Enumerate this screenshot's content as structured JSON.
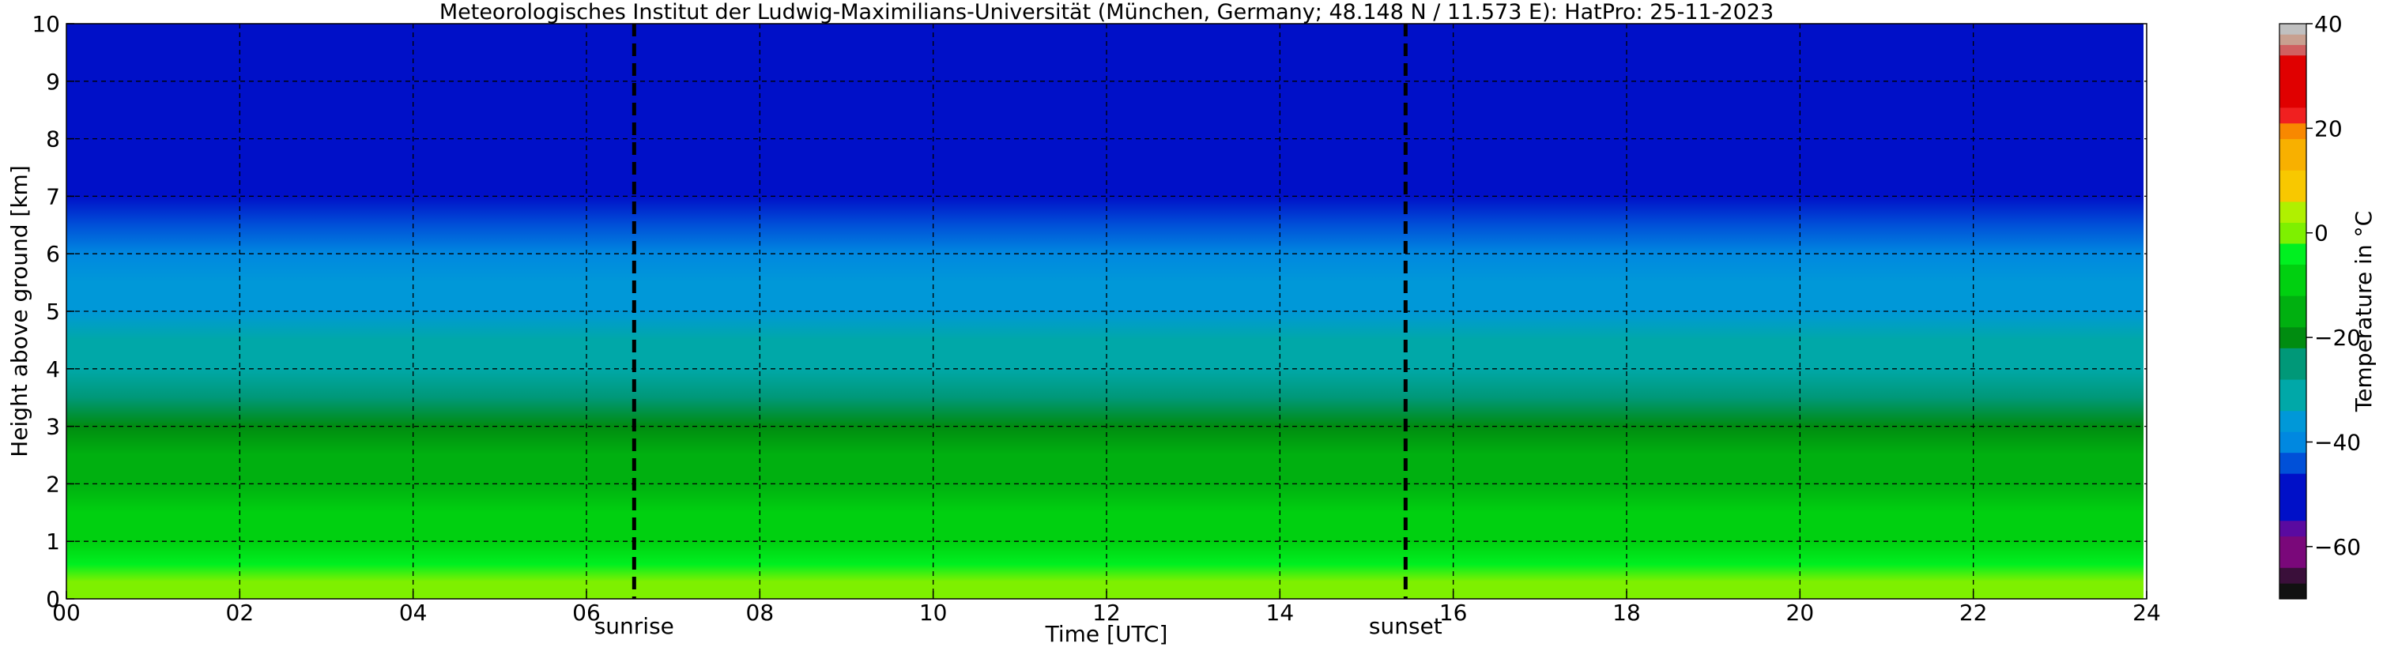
{
  "chart_data": {
    "type": "heatmap",
    "title": "Meteorologisches Institut der Ludwig-Maximilians-Universität (München, Germany; 48.148 N / 11.573 E):    HatPro: 25-11-2023",
    "xlabel": "Time [UTC]",
    "ylabel": "Height above ground [km]",
    "xlim": [
      0,
      24
    ],
    "ylim": [
      0,
      10
    ],
    "x_ticks": [
      0,
      2,
      4,
      6,
      8,
      10,
      12,
      14,
      16,
      18,
      20,
      22,
      24
    ],
    "x_tick_labels": [
      "00",
      "02",
      "04",
      "06",
      "08",
      "10",
      "12",
      "14",
      "16",
      "18",
      "20",
      "22",
      "24"
    ],
    "y_ticks": [
      0,
      1,
      2,
      3,
      4,
      5,
      6,
      7,
      8,
      9,
      10
    ],
    "y_tick_labels": [
      "0",
      "1",
      "2",
      "3",
      "4",
      "5",
      "6",
      "7",
      "8",
      "9",
      "10"
    ],
    "grid": true,
    "events": [
      {
        "label": "sunrise",
        "time": 6.55
      },
      {
        "label": "sunset",
        "time": 15.45
      }
    ],
    "colorbar": {
      "label": "Temperature in °C",
      "min": -70,
      "max": 40,
      "ticks": [
        40,
        20,
        0,
        -20,
        -40,
        -60
      ],
      "tick_labels": [
        "40",
        "20",
        "0",
        "−20",
        "−40",
        "−60"
      ],
      "palette": [
        {
          "from": -70,
          "to": -67,
          "color": "#111111"
        },
        {
          "from": -67,
          "to": -64,
          "color": "#3a0f3a"
        },
        {
          "from": -64,
          "to": -58,
          "color": "#7a087a"
        },
        {
          "from": -58,
          "to": -55,
          "color": "#5a0aa0"
        },
        {
          "from": -55,
          "to": -46,
          "color": "#0010c8"
        },
        {
          "from": -46,
          "to": -42,
          "color": "#0050d8"
        },
        {
          "from": -42,
          "to": -38,
          "color": "#0088e0"
        },
        {
          "from": -38,
          "to": -34,
          "color": "#0098d8"
        },
        {
          "from": -34,
          "to": -28,
          "color": "#00a8a8"
        },
        {
          "from": -28,
          "to": -22,
          "color": "#009878"
        },
        {
          "from": -22,
          "to": -18,
          "color": "#008c10"
        },
        {
          "from": -18,
          "to": -12,
          "color": "#00b010"
        },
        {
          "from": -12,
          "to": -6,
          "color": "#00d010"
        },
        {
          "from": -6,
          "to": -2,
          "color": "#00f020"
        },
        {
          "from": -2,
          "to": 2,
          "color": "#7ef000"
        },
        {
          "from": 2,
          "to": 6,
          "color": "#b0f000"
        },
        {
          "from": 6,
          "to": 12,
          "color": "#f8c800"
        },
        {
          "from": 12,
          "to": 18,
          "color": "#f8b000"
        },
        {
          "from": 18,
          "to": 21,
          "color": "#f88800"
        },
        {
          "from": 21,
          "to": 24,
          "color": "#f02020"
        },
        {
          "from": 24,
          "to": 34,
          "color": "#e00000"
        },
        {
          "from": 34,
          "to": 36,
          "color": "#d06060"
        },
        {
          "from": 36,
          "to": 38,
          "color": "#c8a090"
        },
        {
          "from": 38,
          "to": 40,
          "color": "#c0c0c0"
        }
      ]
    },
    "temperature_profile": [
      {
        "height_km": 0.0,
        "temp_c": 1
      },
      {
        "height_km": 0.3,
        "temp_c": -2
      },
      {
        "height_km": 0.6,
        "temp_c": -5
      },
      {
        "height_km": 1.0,
        "temp_c": -8
      },
      {
        "height_km": 1.5,
        "temp_c": -12
      },
      {
        "height_km": 2.0,
        "temp_c": -15
      },
      {
        "height_km": 2.5,
        "temp_c": -18
      },
      {
        "height_km": 3.0,
        "temp_c": -21
      },
      {
        "height_km": 3.5,
        "temp_c": -25
      },
      {
        "height_km": 4.0,
        "temp_c": -29
      },
      {
        "height_km": 4.5,
        "temp_c": -32
      },
      {
        "height_km": 5.0,
        "temp_c": -35
      },
      {
        "height_km": 5.5,
        "temp_c": -37
      },
      {
        "height_km": 6.0,
        "temp_c": -40
      },
      {
        "height_km": 6.5,
        "temp_c": -44
      },
      {
        "height_km": 7.0,
        "temp_c": -49
      },
      {
        "height_km": 7.5,
        "temp_c": -51
      },
      {
        "height_km": 8.0,
        "temp_c": -52
      },
      {
        "height_km": 10.0,
        "temp_c": -53
      }
    ]
  }
}
